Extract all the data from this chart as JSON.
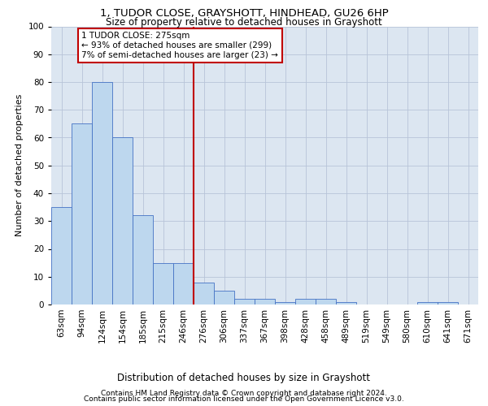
{
  "title1": "1, TUDOR CLOSE, GRAYSHOTT, HINDHEAD, GU26 6HP",
  "title2": "Size of property relative to detached houses in Grayshott",
  "xlabel": "Distribution of detached houses by size in Grayshott",
  "ylabel": "Number of detached properties",
  "bins": [
    "63sqm",
    "94sqm",
    "124sqm",
    "154sqm",
    "185sqm",
    "215sqm",
    "246sqm",
    "276sqm",
    "306sqm",
    "337sqm",
    "367sqm",
    "398sqm",
    "428sqm",
    "458sqm",
    "489sqm",
    "519sqm",
    "549sqm",
    "580sqm",
    "610sqm",
    "641sqm",
    "671sqm"
  ],
  "values": [
    35,
    65,
    80,
    60,
    32,
    15,
    15,
    8,
    5,
    2,
    2,
    1,
    2,
    2,
    1,
    0,
    0,
    0,
    1,
    1,
    0
  ],
  "bar_color": "#bdd7ee",
  "bar_edge_color": "#4472c4",
  "grid_color": "#b8c4d8",
  "background_color": "#dce6f1",
  "vline_x_index": 7,
  "vline_color": "#c00000",
  "annotation_text": "1 TUDOR CLOSE: 275sqm\n← 93% of detached houses are smaller (299)\n7% of semi-detached houses are larger (23) →",
  "annotation_box_color": "#c00000",
  "footer1": "Contains HM Land Registry data © Crown copyright and database right 2024.",
  "footer2": "Contains public sector information licensed under the Open Government Licence v3.0.",
  "ylim": [
    0,
    100
  ],
  "title1_fontsize": 9.5,
  "title2_fontsize": 8.5,
  "ylabel_fontsize": 8,
  "xlabel_fontsize": 8.5,
  "tick_fontsize": 7.5,
  "annotation_fontsize": 7.5,
  "footer_fontsize": 6.5
}
